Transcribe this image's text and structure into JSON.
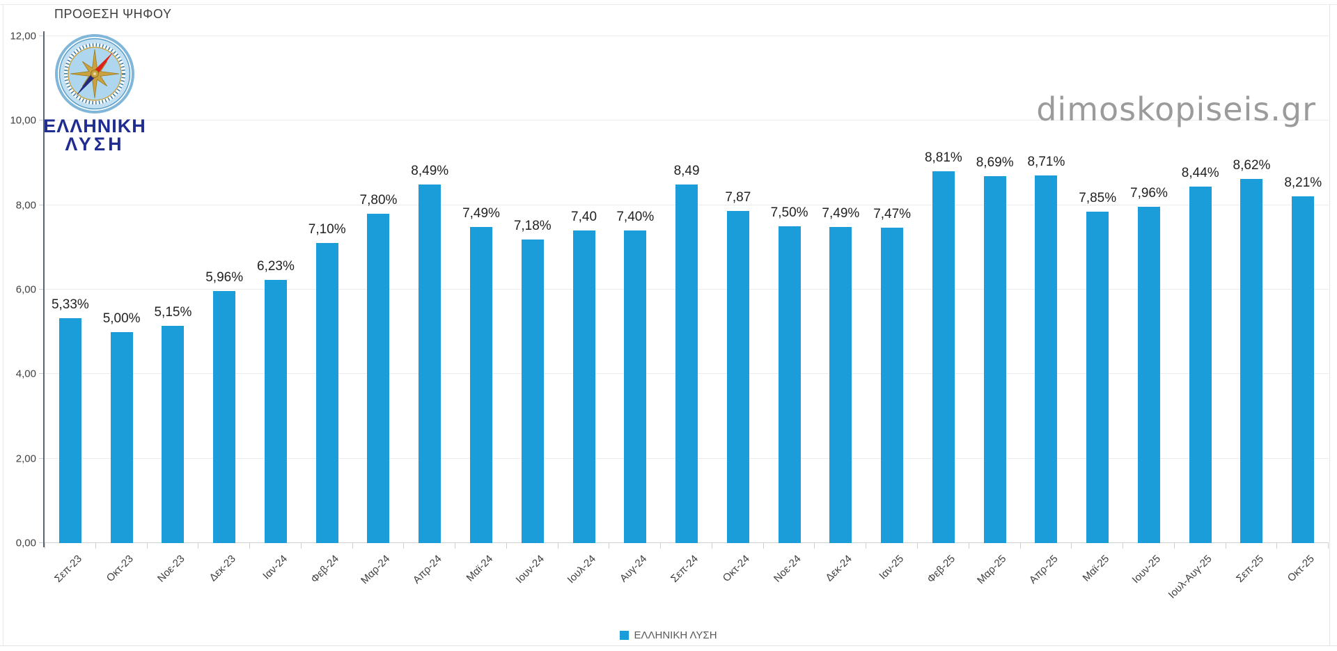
{
  "page": {
    "watermark": "dimoskopiseis.gr"
  },
  "logo": {
    "line1": "ΕΛΛΗΝΙΚΗ",
    "line2": "ΛΥΣΗ"
  },
  "legend": {
    "label": "ΕΛΛΗΝΙΚΗ ΛΥΣΗ",
    "color": "#1b9dd9"
  },
  "chart_data": {
    "type": "bar",
    "title": "ΠΡΟΘΕΣΗ ΨΗΦΟΥ",
    "categories": [
      "Σεπ-23",
      "Οκτ-23",
      "Νοε-23",
      "Δεκ-23",
      "Ιαν-24",
      "Φεβ-24",
      "Μαρ-24",
      "Απρ-24",
      "Μαϊ-24",
      "Ιουν-24",
      "Ιουλ-24",
      "Αυγ-24",
      "Σεπ-24",
      "Οκτ-24",
      "Νοε-24",
      "Δεκ-24",
      "Ιαν-25",
      "Φεβ-25",
      "Μαρ-25",
      "Απρ-25",
      "Μαϊ-25",
      "Ιουν-25",
      "Ιουλ-Αυγ-25",
      "Σεπ-25",
      "Οκτ-25"
    ],
    "series": [
      {
        "name": "ΕΛΛΗΝΙΚΗ ΛΥΣΗ",
        "color": "#1b9dd9",
        "values": [
          5.33,
          5.0,
          5.15,
          5.96,
          6.23,
          7.1,
          7.8,
          8.49,
          7.49,
          7.18,
          7.4,
          7.4,
          8.49,
          7.87,
          7.5,
          7.49,
          7.47,
          8.81,
          8.69,
          8.71,
          7.85,
          7.96,
          8.44,
          8.62,
          8.21
        ],
        "value_labels": [
          "5,33%",
          "5,00%",
          "5,15%",
          "5,96%",
          "6,23%",
          "7,10%",
          "7,80%",
          "8,49%",
          "7,49%",
          "7,18%",
          "7,40",
          "7,40%",
          "8,49",
          "7,87",
          "7,50%",
          "7,49%",
          "7,47%",
          "8,81%",
          "8,69%",
          "8,71%",
          "7,85%",
          "7,96%",
          "8,44%",
          "8,62%",
          "8,21%"
        ],
        "label_format": "comma-decimal"
      }
    ],
    "xlabel": "",
    "ylabel": "",
    "ylim": [
      0,
      12
    ],
    "ytick_step": 2,
    "ytick_labels": [
      "0,00",
      "2,00",
      "4,00",
      "6,00",
      "8,00",
      "10,00",
      "12,00"
    ],
    "grid": true,
    "legend_position": "bottom"
  }
}
